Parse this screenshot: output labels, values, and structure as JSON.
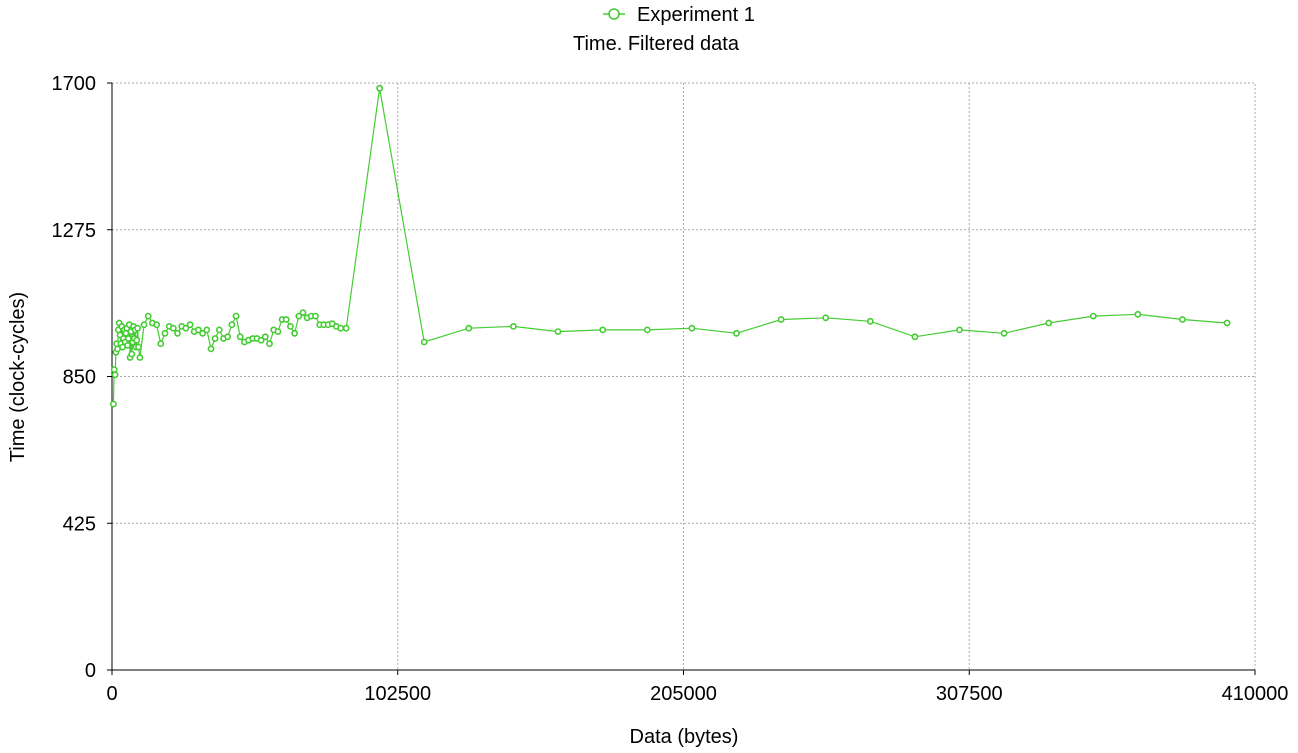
{
  "chart_data": {
    "type": "line",
    "title": "Time. Filtered data",
    "xlabel": "Data (bytes)",
    "ylabel": "Time (clock-cycles)",
    "xlim": [
      0,
      410000
    ],
    "ylim": [
      0,
      1700
    ],
    "x_ticks": [
      "0",
      "102500",
      "205000",
      "307500",
      "410000"
    ],
    "y_ticks": [
      "0",
      "425",
      "850",
      "1275",
      "1700"
    ],
    "grid": true,
    "legend_position": "top-center",
    "series_color": "#44cc33",
    "series": [
      {
        "name": "Experiment 1",
        "x": [
          500,
          800,
          1100,
          1400,
          1700,
          2000,
          2300,
          2600,
          2900,
          3200,
          3500,
          3800,
          4100,
          4400,
          4700,
          5000,
          5300,
          5600,
          5900,
          6200,
          6500,
          6800,
          7100,
          7400,
          7700,
          8000,
          8300,
          8600,
          8900,
          9200,
          9500,
          10000,
          11500,
          13000,
          14500,
          16000,
          17500,
          19000,
          20500,
          22000,
          23500,
          25000,
          26500,
          28000,
          29500,
          31000,
          32500,
          34000,
          35500,
          37000,
          38500,
          40000,
          41500,
          43000,
          44500,
          46000,
          47500,
          49000,
          50500,
          52000,
          53500,
          55000,
          56500,
          58000,
          59500,
          61000,
          62500,
          64000,
          65500,
          67000,
          68500,
          70000,
          71500,
          73000,
          74500,
          76000,
          77500,
          79000,
          80500,
          82000,
          84000,
          96000,
          112000,
          128000,
          144000,
          160000,
          176000,
          192000,
          208000,
          224000,
          240000,
          256000,
          272000,
          288000,
          304000,
          320000,
          336000,
          352000,
          368000,
          384000,
          400000
        ],
        "y": [
          770,
          870,
          855,
          920,
          945,
          930,
          985,
          1005,
          970,
          945,
          995,
          935,
          960,
          985,
          950,
          975,
          990,
          940,
          960,
          1000,
          905,
          980,
          915,
          950,
          995,
          960,
          985,
          935,
          955,
          990,
          935,
          905,
          1000,
          1025,
          1005,
          1000,
          945,
          975,
          995,
          990,
          975,
          995,
          990,
          1000,
          980,
          985,
          975,
          985,
          930,
          960,
          985,
          960,
          965,
          1000,
          1025,
          965,
          950,
          955,
          960,
          960,
          955,
          965,
          945,
          985,
          980,
          1015,
          1015,
          995,
          975,
          1025,
          1035,
          1020,
          1025,
          1025,
          1000,
          1000,
          1000,
          1003,
          995,
          990,
          990,
          1685,
          950,
          990,
          995,
          980,
          985,
          985,
          990,
          975,
          1015,
          1020,
          1010,
          965,
          985,
          975,
          1005,
          1025,
          1030,
          1015,
          1005
        ]
      }
    ]
  }
}
